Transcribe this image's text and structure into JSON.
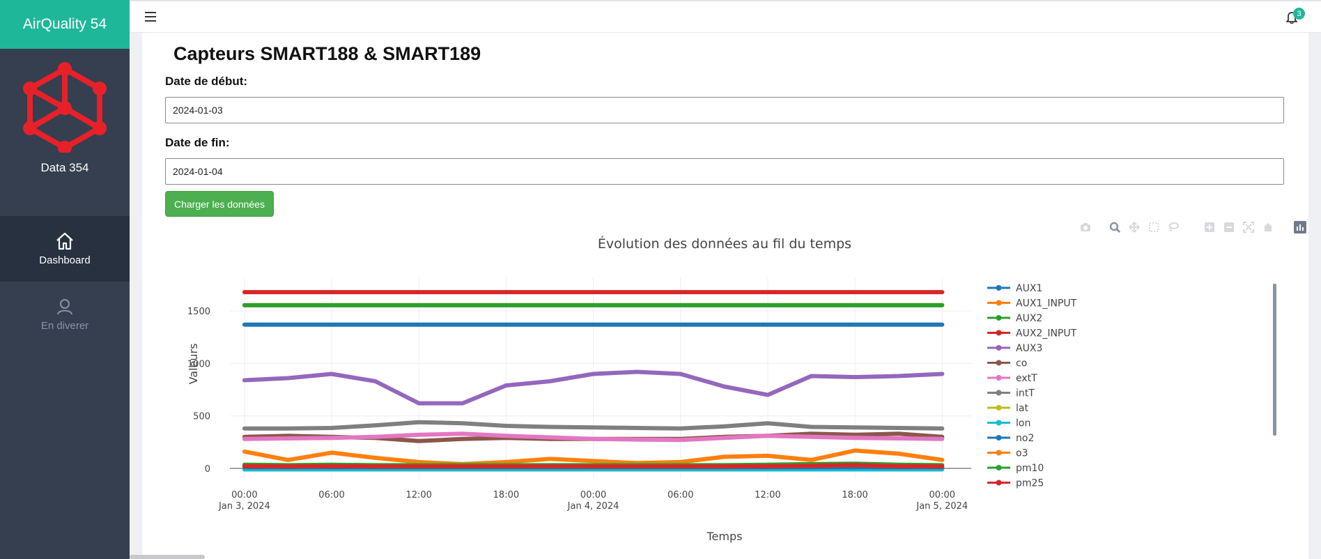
{
  "app": {
    "name": "AirQuality 54",
    "logo_caption": "Data 354"
  },
  "sidebar": {
    "items": [
      {
        "label": "Dashboard",
        "icon": "home-icon",
        "active": true
      },
      {
        "label": "En diverer",
        "icon": "user-icon",
        "active": false
      }
    ]
  },
  "topbar": {
    "notification_count": "3"
  },
  "page": {
    "title": "Capteurs SMART188 & SMART189",
    "start_label": "Date de début:",
    "start_value": "2024-01-03",
    "end_label": "Date de fin:",
    "end_value": "2024-01-04",
    "load_button": "Charger les données"
  },
  "modebar": {
    "icons": [
      "camera-icon",
      "zoom-icon",
      "pan-icon",
      "box-select-icon",
      "lasso-icon",
      "zoom-in-icon",
      "zoom-out-icon",
      "autoscale-icon",
      "reset-axes-icon",
      "plotly-logo-icon"
    ]
  },
  "colors": {
    "brand": "#1fb79a",
    "sidebar": "#353f4f",
    "button": "#4caf50"
  },
  "chart_data": {
    "type": "line",
    "title": "Évolution des données au fil du temps",
    "xlabel": "Temps",
    "ylabel": "Valeurs",
    "ylim": [
      -100,
      1820
    ],
    "yticks": [
      0,
      500,
      1000,
      1500
    ],
    "xlim": [
      "2024-01-02 23:00",
      "2024-01-05 02:00"
    ],
    "xticks": [
      {
        "x": "2024-01-03 00:00",
        "label": "00:00",
        "sub": "Jan 3, 2024"
      },
      {
        "x": "2024-01-03 06:00",
        "label": "06:00",
        "sub": ""
      },
      {
        "x": "2024-01-03 12:00",
        "label": "12:00",
        "sub": ""
      },
      {
        "x": "2024-01-03 18:00",
        "label": "18:00",
        "sub": ""
      },
      {
        "x": "2024-01-04 00:00",
        "label": "00:00",
        "sub": "Jan 4, 2024"
      },
      {
        "x": "2024-01-04 06:00",
        "label": "06:00",
        "sub": ""
      },
      {
        "x": "2024-01-04 12:00",
        "label": "12:00",
        "sub": ""
      },
      {
        "x": "2024-01-04 18:00",
        "label": "18:00",
        "sub": ""
      },
      {
        "x": "2024-01-05 00:00",
        "label": "00:00",
        "sub": "Jan 5, 2024"
      }
    ],
    "legend_position": "right",
    "x": [
      "2024-01-03 00:00",
      "2024-01-03 03:00",
      "2024-01-03 06:00",
      "2024-01-03 09:00",
      "2024-01-03 12:00",
      "2024-01-03 15:00",
      "2024-01-03 18:00",
      "2024-01-03 21:00",
      "2024-01-04 00:00",
      "2024-01-04 03:00",
      "2024-01-04 06:00",
      "2024-01-04 09:00",
      "2024-01-04 12:00",
      "2024-01-04 15:00",
      "2024-01-04 18:00",
      "2024-01-04 21:00",
      "2024-01-05 00:00"
    ],
    "series": [
      {
        "name": "AUX1",
        "color": "#1f77b4",
        "values": [
          1370,
          1370,
          1370,
          1370,
          1370,
          1370,
          1370,
          1370,
          1370,
          1370,
          1370,
          1370,
          1370,
          1370,
          1370,
          1370,
          1370
        ]
      },
      {
        "name": "AUX1_INPUT",
        "color": "#ff7f0e",
        "values": [
          1555,
          1555,
          1555,
          1555,
          1555,
          1555,
          1555,
          1555,
          1555,
          1555,
          1555,
          1555,
          1555,
          1555,
          1555,
          1555,
          1555
        ]
      },
      {
        "name": "AUX2",
        "color": "#2ca02c",
        "values": [
          1555,
          1555,
          1555,
          1555,
          1555,
          1555,
          1555,
          1555,
          1555,
          1555,
          1555,
          1555,
          1555,
          1555,
          1555,
          1555,
          1555
        ]
      },
      {
        "name": "AUX2_INPUT",
        "color": "#d62728",
        "values": [
          1680,
          1680,
          1680,
          1680,
          1680,
          1680,
          1680,
          1680,
          1680,
          1680,
          1680,
          1680,
          1680,
          1680,
          1680,
          1680,
          1680
        ]
      },
      {
        "name": "AUX3",
        "color": "#9467bd",
        "values": [
          840,
          860,
          900,
          830,
          620,
          620,
          790,
          830,
          900,
          920,
          900,
          780,
          700,
          880,
          870,
          880,
          900
        ]
      },
      {
        "name": "co",
        "color": "#8c564b",
        "values": [
          300,
          310,
          300,
          290,
          260,
          280,
          290,
          280,
          280,
          280,
          280,
          300,
          310,
          330,
          320,
          330,
          300
        ]
      },
      {
        "name": "extT",
        "color": "#e377c2",
        "values": [
          280,
          285,
          290,
          300,
          320,
          330,
          310,
          295,
          280,
          275,
          270,
          290,
          310,
          300,
          290,
          285,
          280
        ]
      },
      {
        "name": "intT",
        "color": "#7f7f7f",
        "values": [
          380,
          380,
          385,
          410,
          440,
          430,
          405,
          395,
          390,
          385,
          380,
          400,
          430,
          395,
          390,
          385,
          380
        ]
      },
      {
        "name": "lat",
        "color": "#bcbd22",
        "values": [
          5,
          5,
          5,
          5,
          5,
          5,
          5,
          5,
          5,
          5,
          5,
          5,
          5,
          5,
          5,
          5,
          5
        ]
      },
      {
        "name": "lon",
        "color": "#17becf",
        "values": [
          -10,
          -10,
          -10,
          -10,
          -10,
          -10,
          -10,
          -10,
          -10,
          -10,
          -10,
          -10,
          -10,
          -10,
          -10,
          -10,
          -10
        ]
      },
      {
        "name": "no2",
        "color": "#1f77b4",
        "values": [
          10,
          10,
          10,
          10,
          10,
          10,
          10,
          10,
          10,
          10,
          10,
          10,
          10,
          10,
          10,
          10,
          10
        ]
      },
      {
        "name": "o3",
        "color": "#ff7f0e",
        "values": [
          160,
          80,
          150,
          100,
          60,
          40,
          60,
          90,
          70,
          50,
          60,
          110,
          120,
          80,
          170,
          140,
          80
        ]
      },
      {
        "name": "pm10",
        "color": "#2ca02c",
        "values": [
          35,
          30,
          35,
          30,
          30,
          30,
          30,
          30,
          30,
          30,
          30,
          30,
          35,
          40,
          45,
          35,
          30
        ]
      },
      {
        "name": "pm25",
        "color": "#d62728",
        "values": [
          20,
          18,
          20,
          18,
          18,
          18,
          18,
          18,
          18,
          18,
          18,
          18,
          20,
          25,
          30,
          20,
          18
        ]
      }
    ]
  }
}
